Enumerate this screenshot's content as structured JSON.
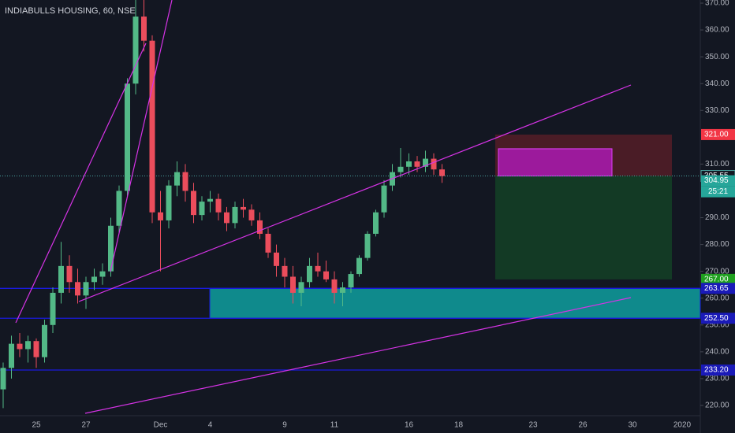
{
  "chart_data": {
    "type": "candlestick",
    "title": "INDIABULLS HOUSING, 60, NSE",
    "categories": [
      null,
      null,
      null,
      null,
      "25",
      null,
      null,
      null,
      null,
      null,
      "27",
      null,
      null,
      null,
      null,
      null,
      null,
      null,
      null,
      "Dec",
      null,
      null,
      null,
      null,
      null,
      "4",
      null,
      null,
      null,
      null,
      null,
      null,
      null,
      null,
      "9",
      null,
      null,
      null,
      null,
      null,
      "11",
      null,
      null,
      null,
      null,
      null,
      null,
      null,
      null,
      "16",
      null,
      null,
      null,
      null,
      null,
      "18",
      null,
      null,
      null,
      null,
      null,
      null,
      null,
      null,
      "23",
      null,
      null,
      null,
      null,
      null,
      "26",
      null,
      null,
      null,
      null,
      null,
      "30",
      null,
      null,
      null,
      null,
      null,
      "2020"
    ],
    "open": [
      226,
      234,
      243,
      241,
      244,
      238,
      250,
      262,
      272,
      266,
      261,
      266,
      268,
      270,
      287,
      300,
      340,
      365,
      356,
      292,
      289,
      302,
      307,
      300,
      291,
      296,
      297,
      292,
      288,
      294,
      293,
      289,
      284,
      277,
      272,
      268,
      262,
      266,
      272,
      270,
      267,
      262,
      264,
      269,
      275,
      284,
      292,
      302,
      307,
      309,
      311,
      309,
      312,
      308,
      null,
      null,
      null,
      null,
      null,
      null,
      null,
      null,
      null,
      null,
      null,
      null,
      null,
      null,
      null,
      null,
      null,
      null,
      null,
      null,
      null,
      null,
      null,
      null,
      null,
      null,
      null,
      null,
      null
    ],
    "high": [
      236,
      246,
      247,
      246,
      245,
      252,
      264,
      281,
      276,
      271,
      268,
      271,
      273,
      290,
      302,
      342,
      372,
      372,
      358,
      300,
      304,
      311,
      310,
      303,
      298,
      300,
      299,
      294,
      296,
      297,
      295,
      292,
      286,
      280,
      275,
      272,
      268,
      275,
      277,
      274,
      270,
      266,
      270,
      276,
      285,
      293,
      304,
      310,
      316,
      314,
      313,
      315,
      314,
      310,
      null,
      null,
      null,
      null,
      null,
      null,
      null,
      null,
      null,
      null,
      null,
      null,
      null,
      null,
      null,
      null,
      null,
      null,
      null,
      null,
      null,
      null,
      null,
      null,
      null,
      null,
      null,
      null,
      null
    ],
    "low": [
      219,
      230,
      238,
      236,
      234,
      236,
      247,
      258,
      262,
      258,
      256,
      263,
      265,
      268,
      284,
      298,
      336,
      352,
      288,
      270,
      286,
      298,
      296,
      288,
      289,
      292,
      289,
      285,
      286,
      290,
      287,
      282,
      275,
      268,
      264,
      258,
      257,
      264,
      268,
      266,
      258,
      257,
      262,
      268,
      274,
      283,
      290,
      300,
      305,
      306,
      307,
      307,
      306,
      303,
      null,
      null,
      null,
      null,
      null,
      null,
      null,
      null,
      null,
      null,
      null,
      null,
      null,
      null,
      null,
      null,
      null,
      null,
      null,
      null,
      null,
      null,
      null,
      null,
      null,
      null,
      null,
      null,
      null
    ],
    "close": [
      234,
      243,
      241,
      244,
      238,
      250,
      262,
      272,
      266,
      261,
      266,
      268,
      270,
      287,
      300,
      340,
      365,
      356,
      292,
      289,
      302,
      307,
      300,
      291,
      296,
      297,
      292,
      288,
      294,
      293,
      289,
      284,
      277,
      272,
      268,
      262,
      266,
      272,
      270,
      267,
      262,
      264,
      269,
      275,
      284,
      292,
      302,
      307,
      309,
      311,
      309,
      312,
      308,
      305.55,
      null,
      null,
      null,
      null,
      null,
      null,
      null,
      null,
      null,
      null,
      null,
      null,
      null,
      null,
      null,
      null,
      null,
      null,
      null,
      null,
      null,
      null,
      null,
      null,
      null,
      null,
      null,
      null,
      null
    ],
    "up_color": "#53b987",
    "down_color": "#eb4d5c",
    "ylim": [
      220,
      370
    ],
    "yticks": [
      {
        "value": 220,
        "label": "220.00"
      },
      {
        "value": 230,
        "label": "230.00"
      },
      {
        "value": 240,
        "label": "240.00"
      },
      {
        "value": 250,
        "label": "250.00"
      },
      {
        "value": 260,
        "label": "260.00"
      },
      {
        "value": 270,
        "label": "270.00"
      },
      {
        "value": 280,
        "label": "280.00"
      },
      {
        "value": 290,
        "label": "290.00"
      },
      {
        "value": 310,
        "label": "310.00"
      },
      {
        "value": 330,
        "label": "330.00"
      },
      {
        "value": 340,
        "label": "340.00"
      },
      {
        "value": 350,
        "label": "350.00"
      },
      {
        "value": 360,
        "label": "360.00"
      },
      {
        "value": 370,
        "label": "370.00"
      }
    ],
    "grid": false,
    "price_labels": [
      {
        "value": 321,
        "label": "321.00",
        "color": "#f23645"
      },
      {
        "value": 305.55,
        "label": "305.55",
        "color": "#131722"
      },
      {
        "value": 304.95,
        "label": "304.95",
        "color": "#26a69a"
      },
      {
        "value": 267,
        "label": "267.00",
        "color": "#1fa01f"
      },
      {
        "value": 263.65,
        "label": "263.65",
        "color": "#1a1ab8"
      },
      {
        "value": 252.5,
        "label": "252.50",
        "color": "#1a1ab8"
      },
      {
        "value": 233.2,
        "label": "233.20",
        "color": "#1a1ab8"
      }
    ],
    "countdown": "25:21"
  }
}
